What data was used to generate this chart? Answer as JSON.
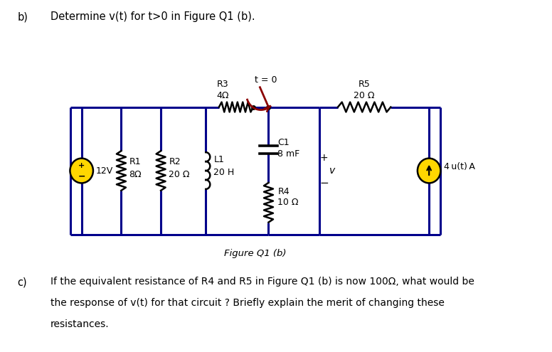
{
  "title_b": "b)",
  "title_text": "Determine v(t) for t>0 in Figure Q1 (b).",
  "figure_label": "Figure Q1 (b)",
  "part_c_line1": "If the equivalent resistance of R4 and R5 in Figure Q1 (b) is now 100Ω, what would be",
  "part_c_line2": "the response of v(t) for that circuit ? Briefly explain the merit of changing these",
  "part_c_line3": "resistances.",
  "part_c_label": "c)",
  "bg_color": "#ffffff",
  "circuit_color": "#00008B",
  "component_color": "#000000",
  "voltage_source_fill": "#FFD700",
  "switch_color": "#8B0000",
  "text_color": "#000000",
  "lw_wire": 2.2,
  "lw_comp": 1.8
}
